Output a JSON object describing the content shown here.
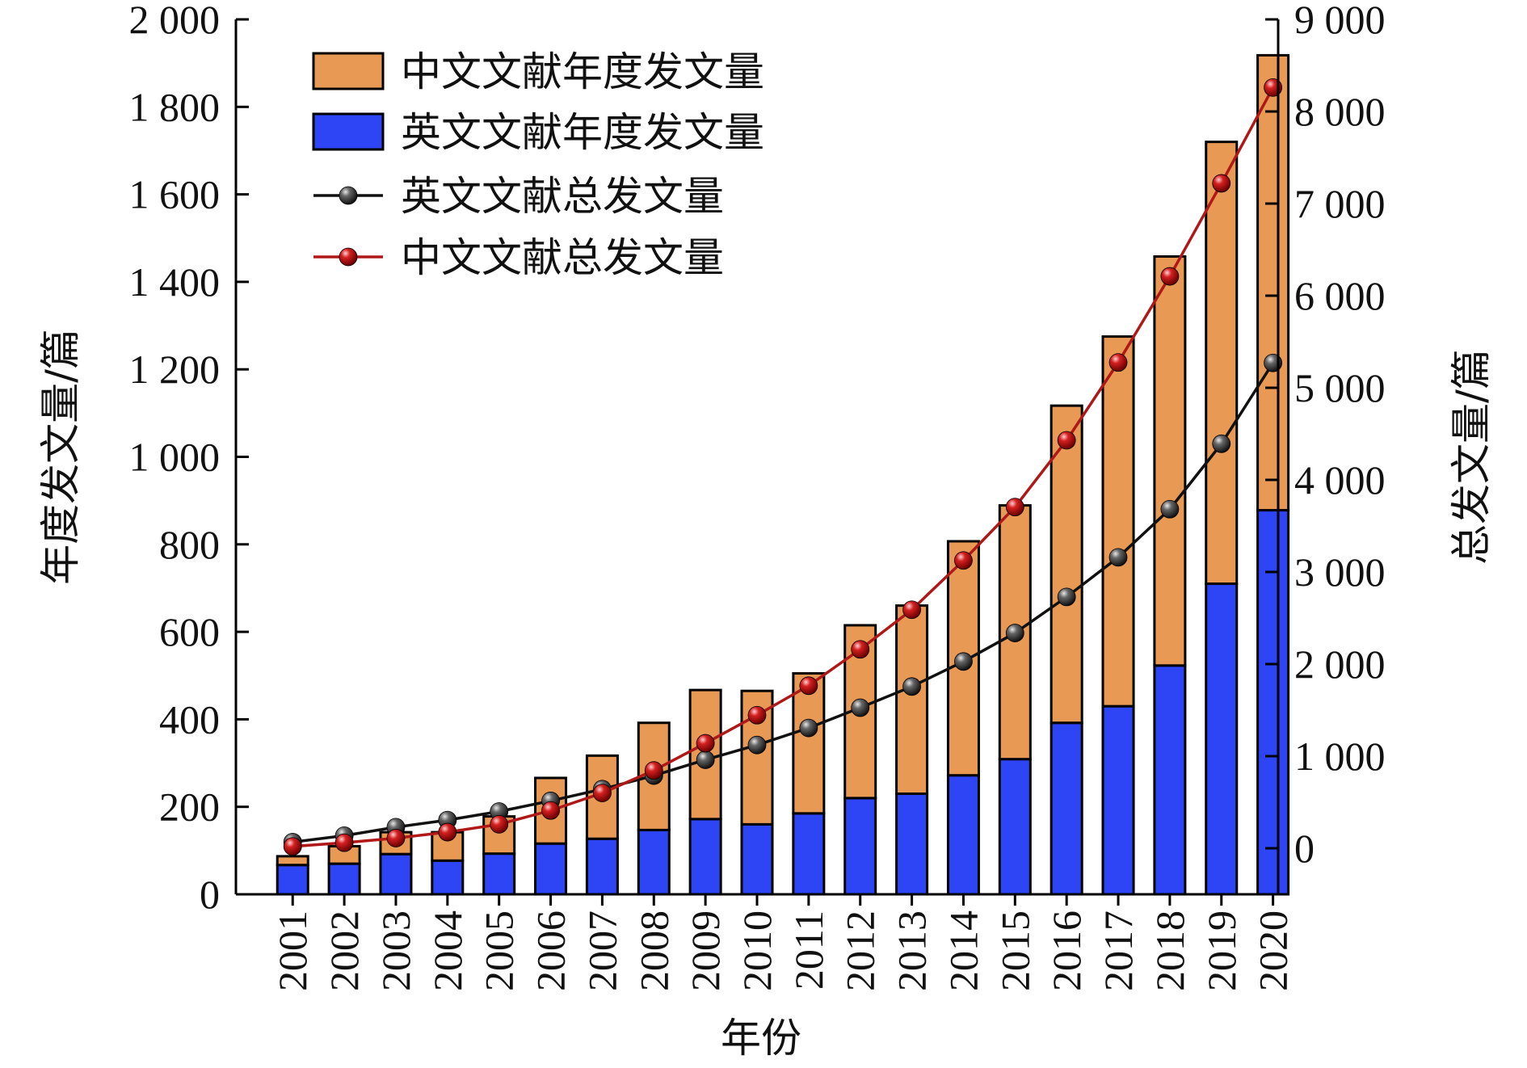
{
  "chart_data": {
    "type": "bar",
    "stacked": true,
    "categories": [
      "2001",
      "2002",
      "2003",
      "2004",
      "2005",
      "2006",
      "2007",
      "2008",
      "2009",
      "2010",
      "2011",
      "2012",
      "2013",
      "2014",
      "2015",
      "2016",
      "2017",
      "2018",
      "2019",
      "2020"
    ],
    "series": [
      {
        "name": "中文文献年度发文量",
        "kind": "bar",
        "axis": "left",
        "stack": true,
        "color": "#E89A55",
        "values": [
          20,
          40,
          50,
          65,
          85,
          150,
          190,
          245,
          295,
          305,
          320,
          395,
          430,
          535,
          580,
          725,
          845,
          935,
          1010,
          1040
        ]
      },
      {
        "name": "英文文献年度发文量",
        "kind": "bar",
        "axis": "left",
        "stack": true,
        "color": "#2D45F5",
        "values": [
          67,
          70,
          92,
          77,
          93,
          116,
          127,
          147,
          172,
          160,
          185,
          220,
          230,
          272,
          309,
          392,
          430,
          523,
          710,
          878
        ]
      },
      {
        "name": "英文文献总发文量",
        "kind": "line",
        "axis": "right",
        "color": "#111111",
        "marker": "#444444",
        "values": [
          67,
          137,
          229,
          306,
          399,
          515,
          642,
          789,
          961,
          1121,
          1306,
          1526,
          1756,
          2028,
          2337,
          2729,
          3159,
          3682,
          4392,
          5270
        ]
      },
      {
        "name": "中文文献总发文量",
        "kind": "line",
        "axis": "right",
        "color": "#B01818",
        "marker": "#C01818",
        "values": [
          20,
          60,
          110,
          175,
          260,
          410,
          600,
          845,
          1140,
          1445,
          1765,
          2160,
          2590,
          3125,
          3705,
          4430,
          5275,
          6210,
          7220,
          8260
        ]
      }
    ],
    "xlabel": "年份",
    "ylabel": "年度发文量/篇",
    "y2label": "总发文量/篇",
    "ylim": [
      0,
      2000
    ],
    "y2lim": [
      -500,
      9000
    ],
    "yticks": [
      0,
      200,
      400,
      600,
      800,
      1000,
      1200,
      1400,
      1600,
      1800,
      2000
    ],
    "ytick_labels": [
      "0",
      "200",
      "400",
      "600",
      "800",
      "1 000",
      "1 200",
      "1 400",
      "1 600",
      "1 800",
      "2 000"
    ],
    "y2ticks": [
      0,
      1000,
      2000,
      3000,
      4000,
      5000,
      6000,
      7000,
      8000,
      9000
    ],
    "y2tick_labels": [
      "0",
      "1 000",
      "2 000",
      "3 000",
      "4 000",
      "5 000",
      "6 000",
      "7 000",
      "8 000",
      "9 000"
    ],
    "grid": false,
    "legend_position": "top-left"
  }
}
